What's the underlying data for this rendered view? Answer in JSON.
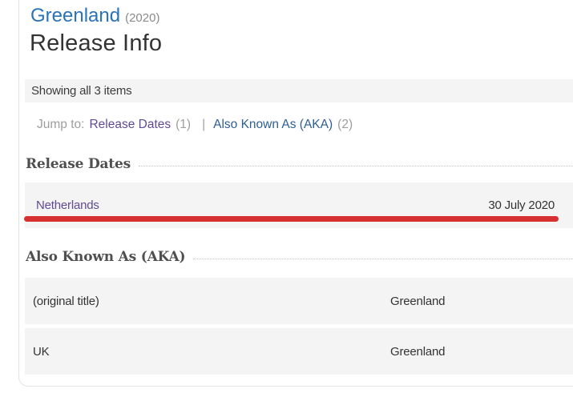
{
  "page": {
    "title_link": "Greenland",
    "title_year": "(2020)",
    "heading": "Release Info"
  },
  "filter_bar": {
    "text": "Showing all 3 items"
  },
  "jump_to": {
    "label": "Jump to:",
    "separator": "|",
    "links": [
      {
        "label": "Release Dates",
        "count": "(1)"
      },
      {
        "label": "Also Known As (AKA)",
        "count": "(2)"
      }
    ]
  },
  "release_dates": {
    "heading": "Release Dates",
    "rows": [
      {
        "country": "Netherlands",
        "date": "30 July 2020"
      }
    ]
  },
  "aka": {
    "heading": "Also Known As (AKA)",
    "rows": [
      {
        "label": "(original title)",
        "title": "Greenland"
      },
      {
        "label": "UK",
        "title": "Greenland"
      }
    ]
  },
  "annotation": {
    "type": "red-underline",
    "color": "#d63031"
  },
  "colors": {
    "link_blue": "#2973b7",
    "nav_link_blue": "#2d5f94",
    "visited_purple": "#5f4b96",
    "muted_gray": "#9e9e9e",
    "row_background": "#f4f4f4",
    "panel_border": "#e3e3e3"
  }
}
